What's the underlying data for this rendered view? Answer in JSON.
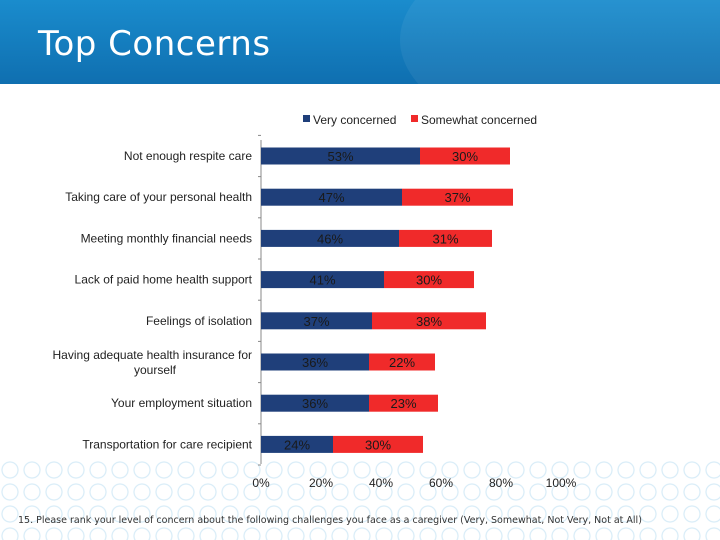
{
  "header": {
    "title": "Top Concerns"
  },
  "footnote": "15. Please rank your level of concern about the following challenges you face as a caregiver (Very, Somewhat, Not Very, Not at All)",
  "colors": {
    "very": "#1f3f7a",
    "somewhat": "#f02a2a",
    "header": "#1580c0"
  },
  "chart_data": {
    "type": "bar",
    "orientation": "horizontal",
    "stacked": true,
    "categories": [
      "Not enough respite care",
      "Taking care of your personal health",
      "Meeting monthly financial needs",
      "Lack of paid home health support",
      "Feelings of isolation",
      "Having adequate health insurance for yourself",
      "Your employment situation",
      "Transportation for care recipient"
    ],
    "series": [
      {
        "name": "Very concerned",
        "values": [
          53,
          47,
          46,
          41,
          37,
          36,
          36,
          24
        ],
        "labels": [
          "53%",
          "47%",
          "46%",
          "41%",
          "37%",
          "36%",
          "36%",
          "24%"
        ]
      },
      {
        "name": "Somewhat concerned",
        "values": [
          30,
          37,
          31,
          30,
          38,
          22,
          23,
          30
        ],
        "labels": [
          "30%",
          "37%",
          "31%",
          "30%",
          "38%",
          "22%",
          "23%",
          "30%"
        ]
      }
    ],
    "xlim": [
      0,
      100
    ],
    "xticks": [
      "0%",
      "20%",
      "40%",
      "60%",
      "80%",
      "100%"
    ],
    "legend": "top"
  }
}
